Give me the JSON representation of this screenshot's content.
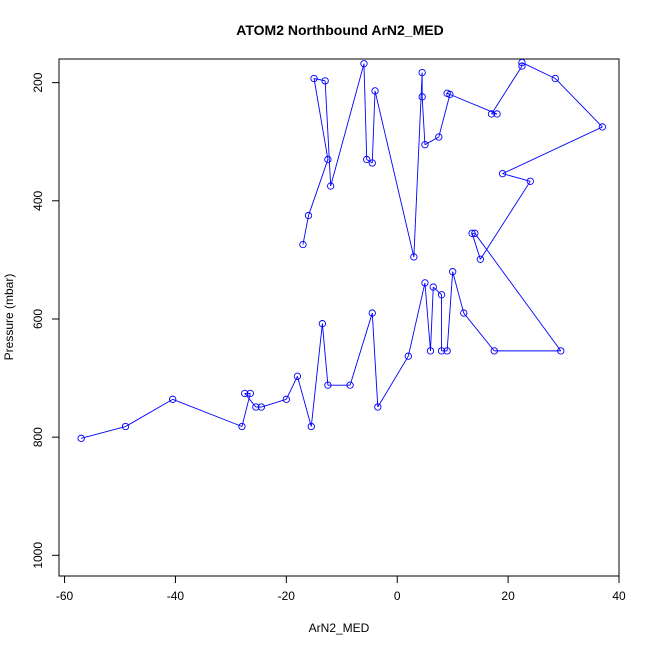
{
  "chart_data": {
    "type": "line",
    "title": "ATOM2 Northbound ArN2_MED",
    "xlabel": "ArN2_MED",
    "ylabel": "Pressure (mbar)",
    "xlim": [
      -61,
      40
    ],
    "ylim": [
      1035,
      160
    ],
    "y_inverted": true,
    "x_ticks": [
      -60,
      -40,
      -20,
      0,
      20,
      40
    ],
    "y_ticks": [
      200,
      400,
      600,
      800,
      1000
    ],
    "grid": false,
    "legend": "none",
    "series_color": "#0000ff",
    "marker": "open-circle",
    "points": [
      [
        -57,
        802
      ],
      [
        -49,
        782
      ],
      [
        -40.5,
        736
      ],
      [
        -28,
        782
      ],
      [
        -26.5,
        726
      ],
      [
        -27.5,
        726
      ],
      [
        -25.5,
        749
      ],
      [
        -24.5,
        749
      ],
      [
        -20,
        736
      ],
      [
        -18,
        697
      ],
      [
        -15.5,
        782
      ],
      [
        -13.5,
        608
      ],
      [
        -12.5,
        712
      ],
      [
        -8.5,
        712
      ],
      [
        -4.5,
        590
      ],
      [
        -3.5,
        749
      ],
      [
        2,
        663
      ],
      [
        5,
        539
      ],
      [
        6,
        654
      ],
      [
        6.5,
        546
      ],
      [
        8,
        559
      ],
      [
        8,
        654
      ],
      [
        9,
        654
      ],
      [
        10,
        520
      ],
      [
        12,
        590
      ],
      [
        17.5,
        654
      ],
      [
        29.5,
        654
      ],
      [
        14,
        455
      ],
      [
        13.5,
        455
      ],
      [
        15,
        499
      ],
      [
        24,
        367
      ],
      [
        19,
        354
      ],
      [
        37,
        275
      ],
      [
        28.5,
        193
      ],
      [
        22.5,
        166
      ],
      [
        22.5,
        172
      ],
      [
        17,
        253
      ],
      [
        18,
        253
      ],
      [
        9,
        218
      ],
      [
        9.5,
        220
      ],
      [
        7.5,
        292
      ],
      [
        5,
        305
      ],
      [
        4.5,
        224
      ],
      [
        4.5,
        183
      ],
      [
        3,
        495
      ],
      [
        -4,
        214
      ],
      [
        -4.5,
        336
      ],
      [
        -5.5,
        330
      ],
      [
        -6,
        168
      ],
      [
        -12,
        375
      ],
      [
        -13,
        197
      ],
      [
        -15,
        193
      ],
      [
        -12.5,
        330
      ],
      [
        -16,
        425
      ],
      [
        -17,
        474
      ]
    ]
  }
}
